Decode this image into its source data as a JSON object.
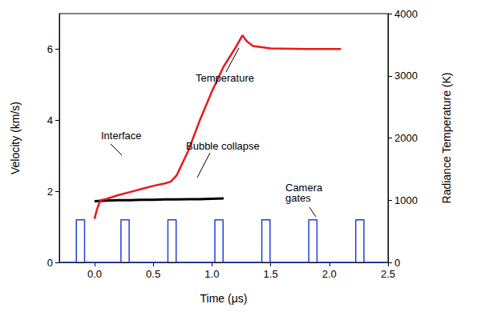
{
  "chart_data": {
    "type": "line",
    "xlabel": "Time (μs)",
    "ylabel": "Velocity (km/s)",
    "y2label": "Radiance Temperature (K)",
    "xlim": [
      -0.3,
      2.5
    ],
    "xticks": [
      {
        "value": 0,
        "label": "0.0"
      },
      0.5,
      {
        "value": 1,
        "label": "1.0"
      },
      1.5,
      {
        "value": 2,
        "label": "2.0"
      },
      2.5
    ],
    "ylim": [
      0,
      7
    ],
    "yticks": [
      0,
      2,
      4,
      6
    ],
    "y2lim": [
      0,
      4000
    ],
    "y2ticks": [
      0,
      1000,
      2000,
      3000,
      4000
    ],
    "grid": false,
    "series": [
      {
        "color": "#000000",
        "axis": "y",
        "x": [
          0.0,
          0.1,
          0.2,
          0.3,
          0.4,
          0.5,
          0.6,
          0.7,
          0.8,
          0.9,
          1.0,
          1.1
        ],
        "values": [
          1.72,
          1.74,
          1.75,
          1.75,
          1.76,
          1.76,
          1.77,
          1.77,
          1.78,
          1.78,
          1.79,
          1.8
        ]
      },
      {
        "color": "#e8191b",
        "axis": "y2",
        "x": [
          0.0,
          0.02,
          0.05,
          0.1,
          0.2,
          0.3,
          0.4,
          0.5,
          0.6,
          0.65,
          0.7,
          0.8,
          0.9,
          1.0,
          1.1,
          1.2,
          1.26,
          1.3,
          1.35,
          1.5,
          1.8,
          2.1
        ],
        "values": [
          700,
          850,
          1000,
          1020,
          1080,
          1130,
          1180,
          1230,
          1270,
          1300,
          1400,
          1800,
          2300,
          2750,
          3150,
          3450,
          3650,
          3550,
          3480,
          3440,
          3430,
          3430
        ]
      },
      {
        "color": "#2040d0",
        "axis": "y",
        "x": [
          -0.3,
          -0.155,
          -0.155,
          -0.085,
          -0.085,
          0.225,
          0.225,
          0.295,
          0.295,
          0.625,
          0.625,
          0.695,
          0.695,
          1.025,
          1.025,
          1.095,
          1.095,
          1.425,
          1.425,
          1.495,
          1.495,
          1.825,
          1.825,
          1.895,
          1.895,
          2.225,
          2.225,
          2.295,
          2.295,
          2.5
        ],
        "values": [
          0,
          0,
          1.2,
          1.2,
          0,
          0,
          1.2,
          1.2,
          0,
          0,
          1.2,
          1.2,
          0,
          0,
          1.2,
          1.2,
          0,
          0,
          1.2,
          1.2,
          0,
          0,
          1.2,
          1.2,
          0,
          0,
          1.2,
          1.2,
          0,
          0
        ]
      }
    ],
    "annotations": [
      "Interface",
      "Bubble collapse",
      "Temperature",
      "Camera gates"
    ]
  }
}
